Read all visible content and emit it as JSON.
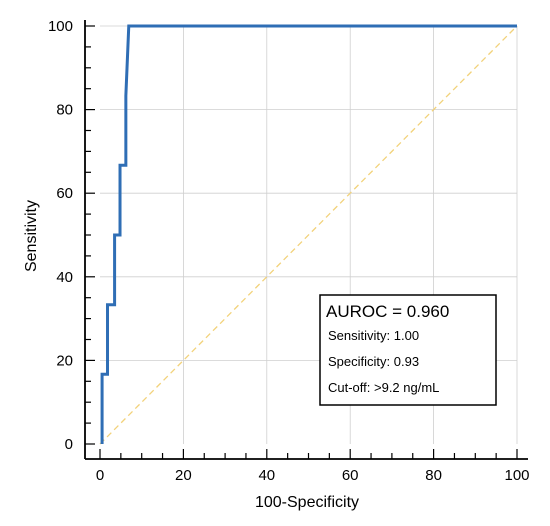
{
  "chart_data": {
    "type": "line",
    "title": "",
    "xlabel": "100-Specificity",
    "ylabel": "Sensitivity",
    "xlim": [
      0,
      100
    ],
    "ylim": [
      0,
      100
    ],
    "x_ticks": [
      0,
      20,
      40,
      60,
      80,
      100
    ],
    "y_ticks": [
      0,
      20,
      40,
      60,
      80,
      100
    ],
    "grid": true,
    "series": [
      {
        "color": "#2f6eb5",
        "points": [
          [
            0.5,
            0
          ],
          [
            0.5,
            16.7
          ],
          [
            1.8,
            16.7
          ],
          [
            1.8,
            33.3
          ],
          [
            3.5,
            33.3
          ],
          [
            3.5,
            50.0
          ],
          [
            4.8,
            50.0
          ],
          [
            4.8,
            66.7
          ],
          [
            6.2,
            66.7
          ],
          [
            6.2,
            83.3
          ],
          [
            6.9,
            100
          ],
          [
            100,
            100
          ]
        ]
      },
      {
        "color": "#f2d27a",
        "style": "dashed",
        "points": [
          [
            0,
            0
          ],
          [
            100,
            100
          ]
        ]
      }
    ],
    "annotation": {
      "title": "AUROC = 0.960",
      "lines": [
        "Sensitivity: 1.00",
        "Specificity: 0.93",
        "Cut-off: >9.2 ng/mL"
      ]
    }
  }
}
